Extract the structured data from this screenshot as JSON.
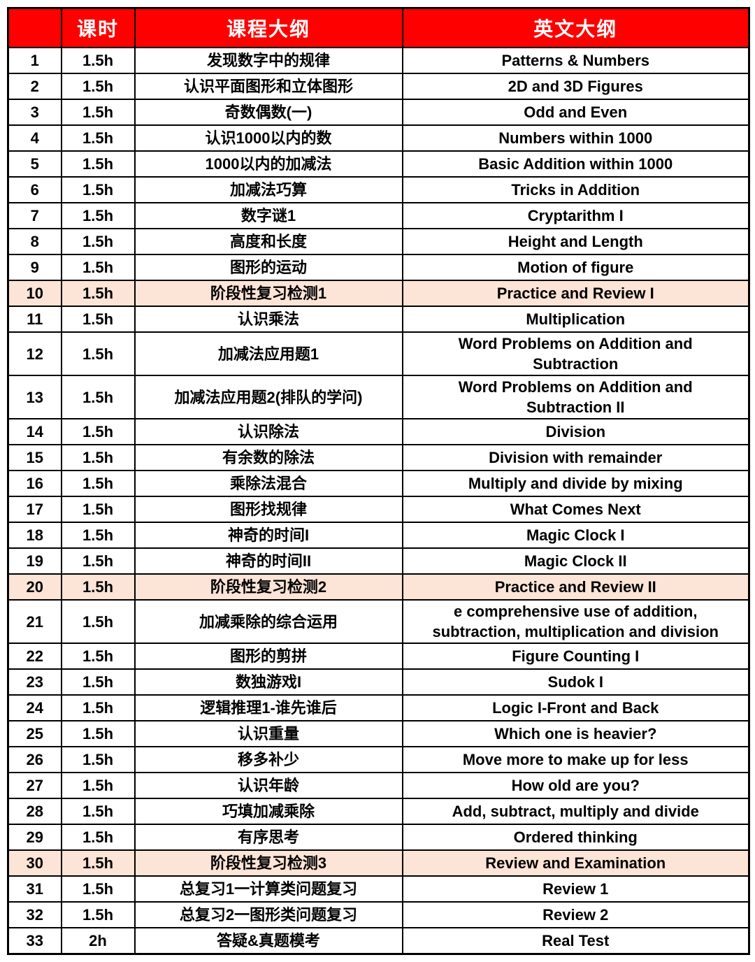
{
  "table": {
    "header": {
      "num": "",
      "hours": "课时",
      "cn": "课程大纲",
      "en": "英文大纲"
    },
    "rows": [
      {
        "no": "1",
        "hours": "1.5h",
        "cn": "发现数字中的规律",
        "en": "Patterns & Numbers",
        "highlight": false
      },
      {
        "no": "2",
        "hours": "1.5h",
        "cn": "认识平面图形和立体图形",
        "en": "2D and 3D Figures",
        "highlight": false
      },
      {
        "no": "3",
        "hours": "1.5h",
        "cn": "奇数偶数(一)",
        "en": "Odd and Even",
        "highlight": false
      },
      {
        "no": "4",
        "hours": "1.5h",
        "cn": "认识1000以内的数",
        "en": "Numbers within 1000",
        "highlight": false
      },
      {
        "no": "5",
        "hours": "1.5h",
        "cn": "1000以内的加减法",
        "en": "Basic Addition within 1000",
        "highlight": false
      },
      {
        "no": "6",
        "hours": "1.5h",
        "cn": "加减法巧算",
        "en": "Tricks in Addition",
        "highlight": false
      },
      {
        "no": "7",
        "hours": "1.5h",
        "cn": "数字谜1",
        "en": "Cryptarithm I",
        "highlight": false
      },
      {
        "no": "8",
        "hours": "1.5h",
        "cn": "高度和长度",
        "en": "Height and Length",
        "highlight": false
      },
      {
        "no": "9",
        "hours": "1.5h",
        "cn": "图形的运动",
        "en": "Motion of figure",
        "highlight": false
      },
      {
        "no": "10",
        "hours": "1.5h",
        "cn": "阶段性复习检测1",
        "en": "Practice and Review I",
        "highlight": true
      },
      {
        "no": "11",
        "hours": "1.5h",
        "cn": "认识乘法",
        "en": "Multiplication",
        "highlight": false
      },
      {
        "no": "12",
        "hours": "1.5h",
        "cn": "加减法应用题1",
        "en": "Word Problems on Addition and\nSubtraction",
        "highlight": false
      },
      {
        "no": "13",
        "hours": "1.5h",
        "cn": "加减法应用题2(排队的学问)",
        "en": "Word Problems on Addition and\nSubtraction II",
        "highlight": false
      },
      {
        "no": "14",
        "hours": "1.5h",
        "cn": "认识除法",
        "en": "Division",
        "highlight": false
      },
      {
        "no": "15",
        "hours": "1.5h",
        "cn": "有余数的除法",
        "en": "Division with remainder",
        "highlight": false
      },
      {
        "no": "16",
        "hours": "1.5h",
        "cn": "乘除法混合",
        "en": "Multiply and divide by mixing",
        "highlight": false
      },
      {
        "no": "17",
        "hours": "1.5h",
        "cn": "图形找规律",
        "en": "What Comes Next",
        "highlight": false
      },
      {
        "no": "18",
        "hours": "1.5h",
        "cn": "神奇的时间I",
        "en": "Magic Clock I",
        "highlight": false
      },
      {
        "no": "19",
        "hours": "1.5h",
        "cn": "神奇的时间II",
        "en": "Magic Clock II",
        "highlight": false
      },
      {
        "no": "20",
        "hours": "1.5h",
        "cn": "阶段性复习检测2",
        "en": "Practice and Review II",
        "highlight": true
      },
      {
        "no": "21",
        "hours": "1.5h",
        "cn": "加减乘除的综合运用",
        "en": "e comprehensive use of addition,\nsubtraction, multiplication and division",
        "highlight": false
      },
      {
        "no": "22",
        "hours": "1.5h",
        "cn": "图形的剪拼",
        "en": "Figure Counting I",
        "highlight": false
      },
      {
        "no": "23",
        "hours": "1.5h",
        "cn": "数独游戏I",
        "en": "Sudok I",
        "highlight": false
      },
      {
        "no": "24",
        "hours": "1.5h",
        "cn": "逻辑推理1-谁先谁后",
        "en": "Logic I-Front and Back",
        "highlight": false
      },
      {
        "no": "25",
        "hours": "1.5h",
        "cn": "认识重量",
        "en": "Which one is heavier?",
        "highlight": false
      },
      {
        "no": "26",
        "hours": "1.5h",
        "cn": "移多补少",
        "en": "Move more to make up for less",
        "highlight": false
      },
      {
        "no": "27",
        "hours": "1.5h",
        "cn": "认识年龄",
        "en": "How old are you?",
        "highlight": false
      },
      {
        "no": "28",
        "hours": "1.5h",
        "cn": "巧填加减乘除",
        "en": "Add, subtract, multiply and divide",
        "highlight": false
      },
      {
        "no": "29",
        "hours": "1.5h",
        "cn": "有序思考",
        "en": "Ordered thinking",
        "highlight": false
      },
      {
        "no": "30",
        "hours": "1.5h",
        "cn": "阶段性复习检测3",
        "en": "Review and Examination",
        "highlight": true
      },
      {
        "no": "31",
        "hours": "1.5h",
        "cn": "总复习1一计算类问题复习",
        "en": "Review 1",
        "highlight": false
      },
      {
        "no": "32",
        "hours": "1.5h",
        "cn": "总复习2一图形类问题复习",
        "en": "Review 2",
        "highlight": false
      },
      {
        "no": "33",
        "hours": "2h",
        "cn": "答疑&真题模考",
        "en": "Real Test",
        "highlight": false
      }
    ]
  },
  "colors": {
    "header_bg": "#FF0000",
    "header_text": "#FFFFFF",
    "highlight_bg": "#FCE4D6",
    "border": "#000000",
    "body_text": "#000000"
  }
}
